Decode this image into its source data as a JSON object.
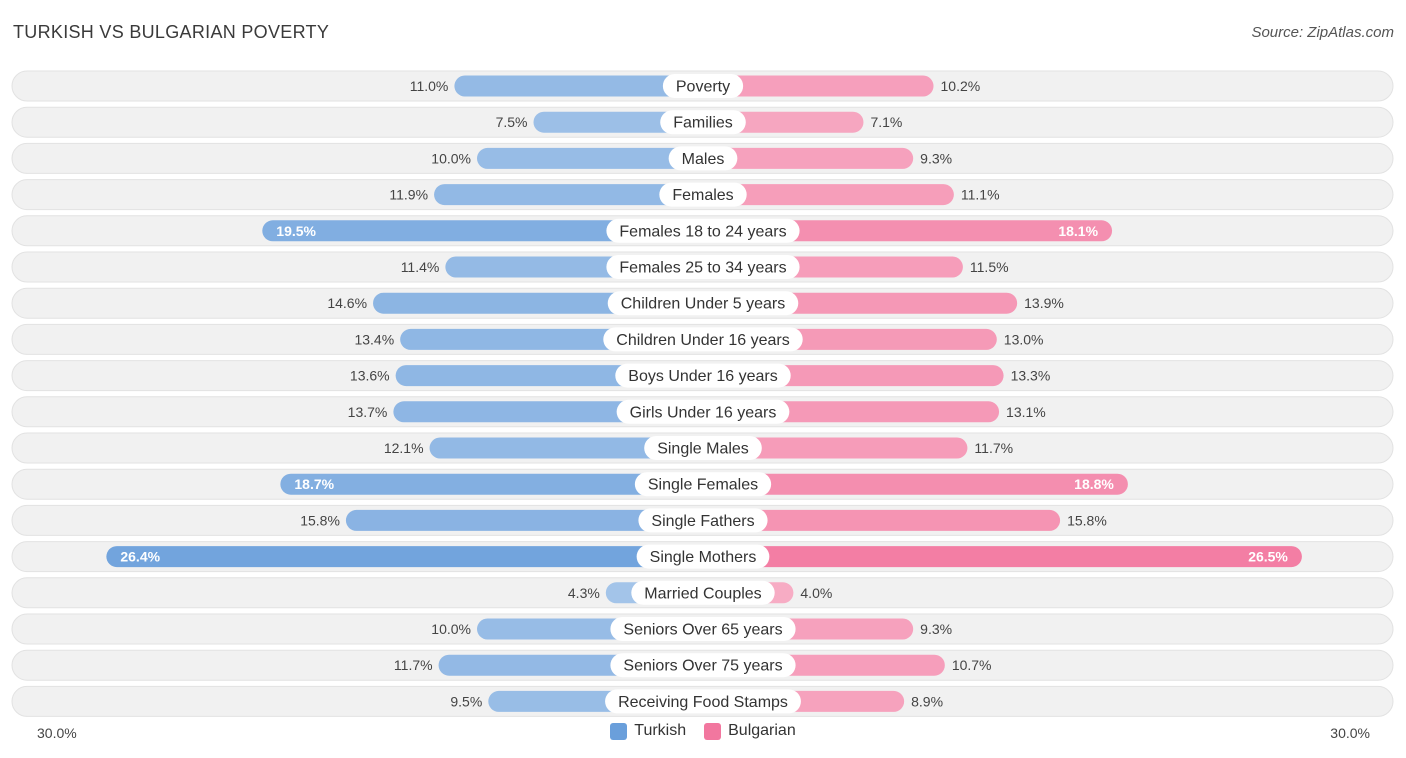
{
  "header": {
    "title": "TURKISH VS BULGARIAN POVERTY",
    "source": "Source: ZipAtlas.com"
  },
  "colors": {
    "turkish": "#6a9fdb",
    "bulgarian": "#f2779f",
    "row_bg": "#f1f1f1"
  },
  "axis": {
    "left_label": "30.0%",
    "right_label": "30.0%"
  },
  "legend": {
    "turkish": "Turkish",
    "bulgarian": "Bulgarian"
  },
  "chart_data": {
    "type": "bar",
    "title": "TURKISH VS BULGARIAN POVERTY",
    "orientation": "horizontal-diverging",
    "xlim": [
      0,
      30
    ],
    "categories": [
      "Poverty",
      "Families",
      "Males",
      "Females",
      "Females 18 to 24 years",
      "Females 25 to 34 years",
      "Children Under 5 years",
      "Children Under 16 years",
      "Boys Under 16 years",
      "Girls Under 16 years",
      "Single Males",
      "Single Females",
      "Single Fathers",
      "Single Mothers",
      "Married Couples",
      "Seniors Over 65 years",
      "Seniors Over 75 years",
      "Receiving Food Stamps"
    ],
    "series": [
      {
        "name": "Turkish",
        "values": [
          11.0,
          7.5,
          10.0,
          11.9,
          19.5,
          11.4,
          14.6,
          13.4,
          13.6,
          13.7,
          12.1,
          18.7,
          15.8,
          26.4,
          4.3,
          10.0,
          11.7,
          9.5
        ],
        "labels": [
          "11.0%",
          "7.5%",
          "10.0%",
          "11.9%",
          "19.5%",
          "11.4%",
          "14.6%",
          "13.4%",
          "13.6%",
          "13.7%",
          "12.1%",
          "18.7%",
          "15.8%",
          "26.4%",
          "4.3%",
          "10.0%",
          "11.7%",
          "9.5%"
        ]
      },
      {
        "name": "Bulgarian",
        "values": [
          10.2,
          7.1,
          9.3,
          11.1,
          18.1,
          11.5,
          13.9,
          13.0,
          13.3,
          13.1,
          11.7,
          18.8,
          15.8,
          26.5,
          4.0,
          9.3,
          10.7,
          8.9
        ],
        "labels": [
          "10.2%",
          "7.1%",
          "9.3%",
          "11.1%",
          "18.1%",
          "11.5%",
          "13.9%",
          "13.0%",
          "13.3%",
          "13.1%",
          "11.7%",
          "18.8%",
          "15.8%",
          "26.5%",
          "4.0%",
          "9.3%",
          "10.7%",
          "8.9%"
        ]
      }
    ]
  }
}
